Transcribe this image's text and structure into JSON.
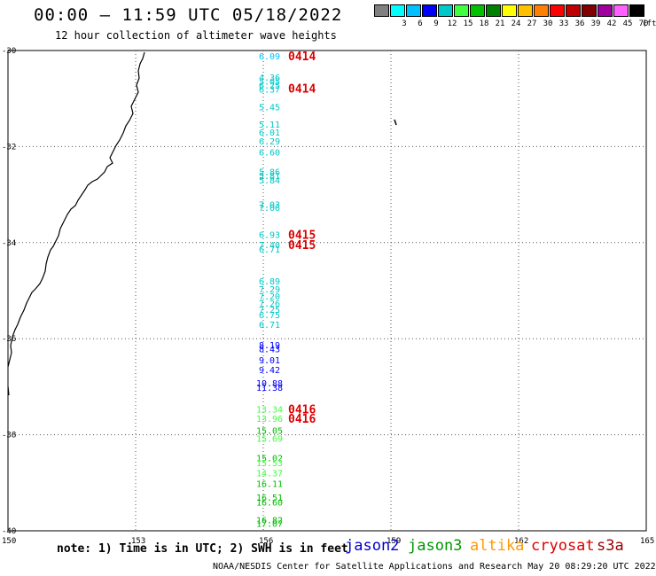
{
  "header": {
    "title": "00:00 – 11:59 UTC 05/18/2022",
    "subtitle": "12 hour collection of altimeter wave heights"
  },
  "color_scale": {
    "unit": "(ft)",
    "entries": [
      {
        "label": "",
        "color": "#808080"
      },
      {
        "label": "3",
        "color": "#00ffff"
      },
      {
        "label": "6",
        "color": "#00c0ff"
      },
      {
        "label": "9",
        "color": "#0000ff"
      },
      {
        "label": "12",
        "color": "#00c8c8"
      },
      {
        "label": "15",
        "color": "#40ff40"
      },
      {
        "label": "18",
        "color": "#00c000"
      },
      {
        "label": "21",
        "color": "#008000"
      },
      {
        "label": "24",
        "color": "#ffff00"
      },
      {
        "label": "27",
        "color": "#ffc000"
      },
      {
        "label": "30",
        "color": "#ff8000"
      },
      {
        "label": "33",
        "color": "#ff0000"
      },
      {
        "label": "36",
        "color": "#c00000"
      },
      {
        "label": "39",
        "color": "#800000"
      },
      {
        "label": "42",
        "color": "#a000a0"
      },
      {
        "label": "45",
        "color": "#ff60ff"
      },
      {
        "label": "70",
        "color": "#000000"
      }
    ]
  },
  "axes": {
    "lon_ticks": [
      "150",
      "153",
      "156",
      "159",
      "162",
      "165"
    ],
    "lat_ticks": [
      "-30",
      "-32",
      "-34",
      "-36",
      "-38",
      "-40"
    ],
    "lon_range": [
      150,
      165
    ],
    "lat_range": [
      -40,
      -30
    ]
  },
  "wave_heights": [
    {
      "label": "6.09",
      "lat": -30.11,
      "color": "#00c0ff"
    },
    {
      "label": "4.36",
      "lat": -30.55,
      "color": "#00c8c8"
    },
    {
      "label": "5.05",
      "lat": -30.64,
      "color": "#00c8c8"
    },
    {
      "label": "6.25",
      "lat": -30.72,
      "color": "#00c8c8"
    },
    {
      "label": "6.37",
      "lat": -30.8,
      "color": "#00c8c8"
    },
    {
      "label": "5.45",
      "lat": -31.17,
      "color": "#00c8c8"
    },
    {
      "label": "5.11",
      "lat": -31.53,
      "color": "#00c8c8"
    },
    {
      "label": "6.01",
      "lat": -31.7,
      "color": "#00c8c8"
    },
    {
      "label": "6.29",
      "lat": -31.88,
      "color": "#00c8c8"
    },
    {
      "label": "6.60",
      "lat": -32.11,
      "color": "#00c8c8"
    },
    {
      "label": "5.86",
      "lat": -32.52,
      "color": "#00c8c8"
    },
    {
      "label": "5.81",
      "lat": -32.6,
      "color": "#00c8c8"
    },
    {
      "label": "5.84",
      "lat": -32.69,
      "color": "#00c8c8"
    },
    {
      "label": "7.03",
      "lat": -33.2,
      "color": "#00c8c8"
    },
    {
      "label": "7.06",
      "lat": -33.27,
      "color": "#00c8c8"
    },
    {
      "label": "6.93",
      "lat": -33.83,
      "color": "#00c8c8"
    },
    {
      "label": "7.40",
      "lat": -34.04,
      "color": "#00c8c8"
    },
    {
      "label": "6.71",
      "lat": -34.13,
      "color": "#00c8c8"
    },
    {
      "label": "6.89",
      "lat": -34.8,
      "color": "#00c8c8"
    },
    {
      "label": "7.29",
      "lat": -34.96,
      "color": "#00c8c8"
    },
    {
      "label": "7.20",
      "lat": -35.11,
      "color": "#00c8c8"
    },
    {
      "label": "7.26",
      "lat": -35.26,
      "color": "#00c8c8"
    },
    {
      "label": "7.25",
      "lat": -35.39,
      "color": "#00c8c8"
    },
    {
      "label": "6.75",
      "lat": -35.5,
      "color": "#00c8c8"
    },
    {
      "label": "6.71",
      "lat": -35.7,
      "color": "#00c8c8"
    },
    {
      "label": "8.19",
      "lat": -36.13,
      "color": "#0000ff"
    },
    {
      "label": "8.43",
      "lat": -36.21,
      "color": "#0000ff"
    },
    {
      "label": "9.01",
      "lat": -36.44,
      "color": "#0000ff"
    },
    {
      "label": "9.42",
      "lat": -36.64,
      "color": "#0000ff"
    },
    {
      "label": "10.88",
      "lat": -36.92,
      "color": "#0000ff"
    },
    {
      "label": "11.38",
      "lat": -37.01,
      "color": "#0000ff"
    },
    {
      "label": "13.34",
      "lat": -37.46,
      "color": "#40ff40"
    },
    {
      "label": "13.96",
      "lat": -37.66,
      "color": "#40ff40"
    },
    {
      "label": "15.05",
      "lat": -37.91,
      "color": "#00c000"
    },
    {
      "label": "15.69",
      "lat": -38.07,
      "color": "#40ff40"
    },
    {
      "label": "15.02",
      "lat": -38.48,
      "color": "#00c000"
    },
    {
      "label": "15.53",
      "lat": -38.58,
      "color": "#40ff40"
    },
    {
      "label": "14.37",
      "lat": -38.79,
      "color": "#40ff40"
    },
    {
      "label": "16.11",
      "lat": -39.01,
      "color": "#00c000"
    },
    {
      "label": "16.51",
      "lat": -39.3,
      "color": "#00c000"
    },
    {
      "label": "16.60",
      "lat": -39.4,
      "color": "#00c000"
    },
    {
      "label": "16.82",
      "lat": -39.77,
      "color": "#00c000"
    },
    {
      "label": "17.07",
      "lat": -39.84,
      "color": "#00c000"
    }
  ],
  "pass_labels": [
    {
      "label": "0414",
      "lat": -30.11
    },
    {
      "label": "0414",
      "lat": -30.78
    },
    {
      "label": "0415",
      "lat": -33.83
    },
    {
      "label": "0415",
      "lat": -34.04
    },
    {
      "label": "0416",
      "lat": -37.46
    },
    {
      "label": "0416",
      "lat": -37.66
    }
  ],
  "footer": {
    "note": "note: 1) Time is in UTC; 2) SWH is in feet",
    "credit": "NOAA/NESDIS Center for Satellite Applications and Research   May 20 08:29:20 UTC 2022",
    "satellites": [
      {
        "name": "jason2",
        "color": "#0000cc"
      },
      {
        "name": "jason3",
        "color": "#009900"
      },
      {
        "name": "altika",
        "color": "#ff9900"
      },
      {
        "name": "cryosat",
        "color": "#dd0000"
      },
      {
        "name": "s3a",
        "color": "#990000"
      }
    ]
  }
}
